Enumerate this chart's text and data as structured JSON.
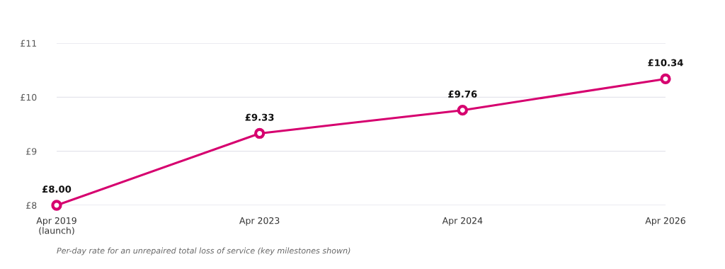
{
  "chart_data": {
    "type": "line",
    "categories": [
      "Apr 2019\n(launch)",
      "Apr 2023",
      "Apr 2024",
      "Apr 2026"
    ],
    "series": [
      {
        "color": "#d6006f",
        "values": [
          8.0,
          9.33,
          9.76,
          10.34
        ],
        "value_labels": [
          "£8.00",
          "£9.33",
          "£9.76",
          "£10.34"
        ]
      }
    ],
    "ylim": [
      8,
      11
    ],
    "yticks": [
      {
        "value": 8,
        "label": "£8"
      },
      {
        "value": 9,
        "label": "£9"
      },
      {
        "value": 10,
        "label": "£10"
      },
      {
        "value": 11,
        "label": "£11"
      }
    ],
    "grid": "y",
    "marker": "circle",
    "line_style": "solid",
    "annotations": [
      "Per-day rate for an unrepaired total loss of service (key milestones shown)"
    ]
  }
}
